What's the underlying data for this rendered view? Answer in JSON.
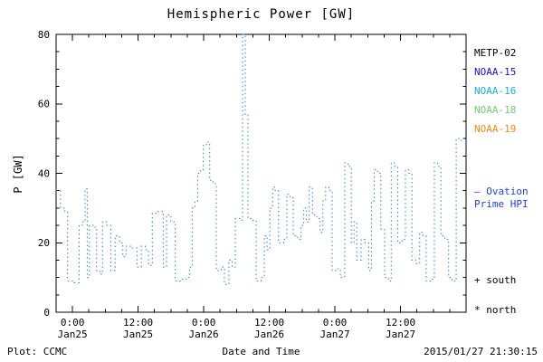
{
  "footer": {
    "plot_credit": "Plot: CCMC",
    "timestamp": "2015/01/27 21:30:15"
  },
  "legend": {
    "satellites": [
      {
        "label": "METP-02",
        "color": "#000000"
      },
      {
        "label": "NOAA-15",
        "color": "#1515bb"
      },
      {
        "label": "NOAA-16",
        "color": "#22aacc"
      },
      {
        "label": "NOAA-18",
        "color": "#77c877"
      },
      {
        "label": "NOAA-19",
        "color": "#ee8822"
      }
    ],
    "line_label_1": "— Ovation",
    "line_label_2": "Prime HPI",
    "line_color": "#2244cc",
    "marker_south": "+ south",
    "marker_north": "* north"
  },
  "chart_data": {
    "type": "line",
    "style": "dotted-step",
    "title": "Hemispheric Power [GW]",
    "xlabel": "Date and Time",
    "ylabel": "P [GW]",
    "series_name": "Ovation Prime HPI",
    "line_color": "#4488cc",
    "grid": false,
    "legend_position": "right",
    "ylim": [
      0,
      80
    ],
    "yticks": [
      0,
      20,
      40,
      60,
      80
    ],
    "y_minor_step": 5,
    "x_hours_domain": [
      -3,
      72
    ],
    "x_minor_step": 3,
    "xticks": [
      {
        "t": 0,
        "time": "0:00",
        "date": "Jan25"
      },
      {
        "t": 12,
        "time": "12:00",
        "date": "Jan25"
      },
      {
        "t": 24,
        "time": "0:00",
        "date": "Jan26"
      },
      {
        "t": 36,
        "time": "12:00",
        "date": "Jan26"
      },
      {
        "t": 48,
        "time": "0:00",
        "date": "Jan27"
      },
      {
        "t": 60,
        "time": "12:00",
        "date": "Jan27"
      }
    ],
    "steps": [
      [
        -3,
        35
      ],
      [
        -2.2,
        30
      ],
      [
        -1.4,
        29
      ],
      [
        -0.9,
        9
      ],
      [
        0.3,
        8.5
      ],
      [
        1.2,
        25
      ],
      [
        1.8,
        26
      ],
      [
        2.3,
        35.5
      ],
      [
        2.7,
        10
      ],
      [
        3.1,
        25
      ],
      [
        3.9,
        24.5
      ],
      [
        4.4,
        12
      ],
      [
        5,
        11
      ],
      [
        5.5,
        26
      ],
      [
        6.3,
        25
      ],
      [
        7,
        12
      ],
      [
        7.8,
        22
      ],
      [
        8.6,
        20
      ],
      [
        9.2,
        16
      ],
      [
        9.8,
        19
      ],
      [
        10.8,
        18.5
      ],
      [
        11.8,
        13
      ],
      [
        12.6,
        19
      ],
      [
        13.3,
        18
      ],
      [
        13.9,
        13.5
      ],
      [
        14.6,
        28.5
      ],
      [
        15.6,
        29
      ],
      [
        16.6,
        13
      ],
      [
        17.2,
        28
      ],
      [
        18,
        26
      ],
      [
        18.8,
        9
      ],
      [
        19.8,
        9.5
      ],
      [
        20.8,
        10
      ],
      [
        21.4,
        13
      ],
      [
        21.9,
        30
      ],
      [
        22.4,
        32
      ],
      [
        22.9,
        40
      ],
      [
        23.4,
        41
      ],
      [
        23.9,
        48
      ],
      [
        24.5,
        49
      ],
      [
        25.1,
        38
      ],
      [
        25.7,
        37
      ],
      [
        26.3,
        12
      ],
      [
        27.2,
        13
      ],
      [
        27.8,
        8
      ],
      [
        28.6,
        15
      ],
      [
        29.2,
        13
      ],
      [
        29.8,
        27
      ],
      [
        30.6,
        26.5
      ],
      [
        31.1,
        80
      ],
      [
        31.6,
        57
      ],
      [
        32.1,
        27
      ],
      [
        33,
        26.5
      ],
      [
        33.6,
        9
      ],
      [
        34.5,
        10
      ],
      [
        35.1,
        22
      ],
      [
        35.6,
        18
      ],
      [
        36.1,
        30
      ],
      [
        36.6,
        36
      ],
      [
        37.1,
        35
      ],
      [
        37.7,
        20
      ],
      [
        38.6,
        21
      ],
      [
        39.2,
        34
      ],
      [
        39.8,
        33
      ],
      [
        40.4,
        22
      ],
      [
        41.2,
        21
      ],
      [
        41.8,
        25
      ],
      [
        42.3,
        30
      ],
      [
        42.8,
        26
      ],
      [
        43.3,
        36
      ],
      [
        43.9,
        28
      ],
      [
        44.7,
        27
      ],
      [
        45.3,
        23
      ],
      [
        45.8,
        32
      ],
      [
        46.3,
        36
      ],
      [
        46.9,
        35
      ],
      [
        47.5,
        12
      ],
      [
        48.4,
        12.5
      ],
      [
        49,
        10
      ],
      [
        49.8,
        43
      ],
      [
        50.4,
        42
      ],
      [
        51,
        20
      ],
      [
        51.5,
        26
      ],
      [
        52,
        15
      ],
      [
        52.8,
        21
      ],
      [
        53.5,
        20
      ],
      [
        54.2,
        12
      ],
      [
        54.7,
        32
      ],
      [
        55.2,
        41
      ],
      [
        55.8,
        40
      ],
      [
        56.4,
        24
      ],
      [
        57.1,
        10
      ],
      [
        57.8,
        9
      ],
      [
        58.3,
        43
      ],
      [
        58.9,
        42
      ],
      [
        59.5,
        20
      ],
      [
        60.3,
        21
      ],
      [
        60.9,
        41
      ],
      [
        61.5,
        40
      ],
      [
        62.1,
        15
      ],
      [
        62.8,
        14
      ],
      [
        63.5,
        23
      ],
      [
        64.1,
        22
      ],
      [
        64.7,
        9
      ],
      [
        65.6,
        9.5
      ],
      [
        66.2,
        43
      ],
      [
        66.8,
        42
      ],
      [
        67.4,
        22
      ],
      [
        68.1,
        21
      ],
      [
        68.8,
        10
      ],
      [
        69.4,
        9
      ],
      [
        70.2,
        50
      ],
      [
        70.9,
        49.5
      ],
      [
        71.5,
        50.5
      ]
    ]
  }
}
